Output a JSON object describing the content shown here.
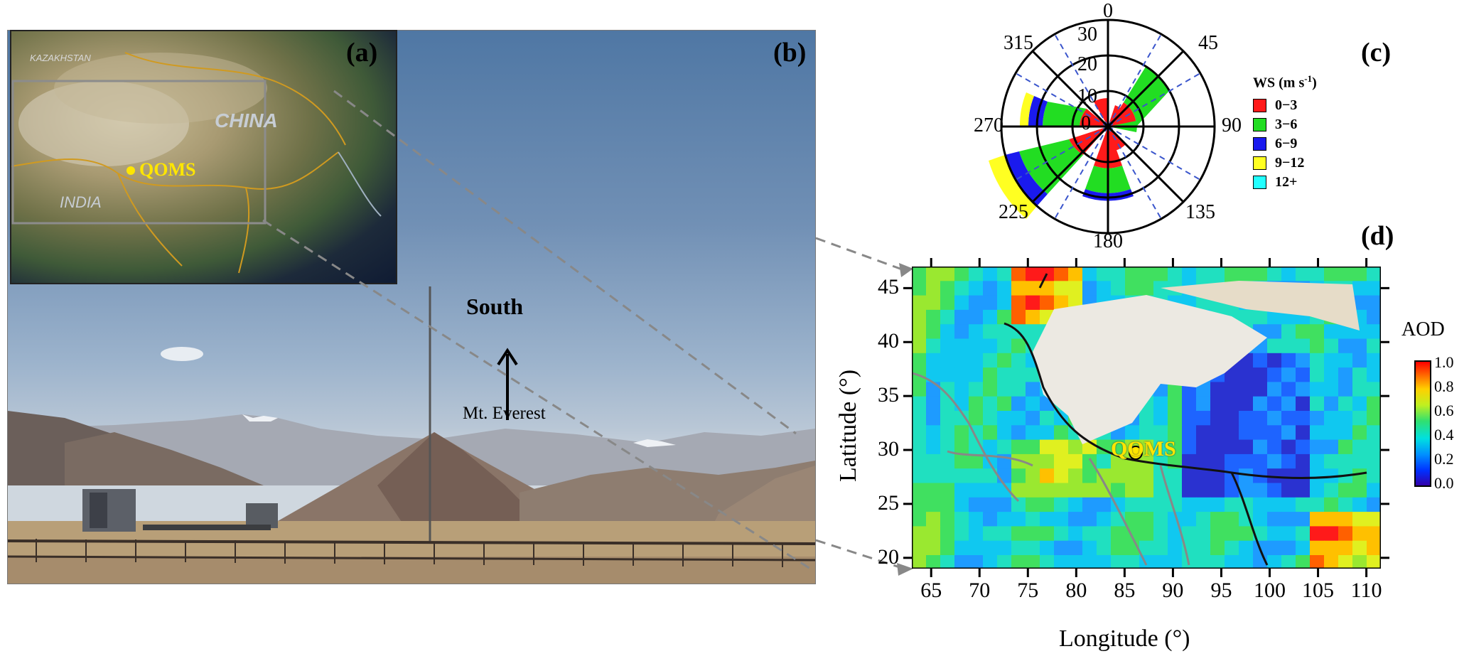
{
  "panel_labels": {
    "a": "(a)",
    "b": "(b)",
    "c": "(c)",
    "d": "(d)"
  },
  "inset_map": {
    "country_labels": [
      "KAZAKHSTAN",
      "CHINA",
      "INDIA"
    ],
    "site_label": "QOMS"
  },
  "photo": {
    "direction_label": "South",
    "peak_label": "Mt. Everest"
  },
  "wind_rose": {
    "legend_title_main": "WS (m s",
    "legend_title_sup": "-1",
    "legend_title_end": ")",
    "radial_ticks": [
      "0",
      "10",
      "20",
      "30"
    ],
    "direction_labels": {
      "n": "0",
      "ne": "45",
      "e": "90",
      "se": "135",
      "s": "180",
      "sw": "225",
      "w": "270",
      "nw": "315"
    },
    "bins": [
      {
        "label": "0−3",
        "color": "#ff1a1a"
      },
      {
        "label": "3−6",
        "color": "#22dd22"
      },
      {
        "label": "6−9",
        "color": "#1a1aee"
      },
      {
        "label": "9−12",
        "color": "#ffff22"
      },
      {
        "label": "12+",
        "color": "#22ffff"
      }
    ]
  },
  "aod_map": {
    "site_label": "QOMS",
    "xlabel": "Longitude (°)",
    "ylabel": "Latitude (°)",
    "x_ticks": [
      "65",
      "70",
      "75",
      "80",
      "85",
      "90",
      "95",
      "100",
      "105",
      "110"
    ],
    "y_ticks": [
      "20",
      "25",
      "30",
      "35",
      "40",
      "45"
    ],
    "colorbar_title": "AOD",
    "colorbar_ticks": [
      "0.0",
      "0.2",
      "0.4",
      "0.6",
      "0.8",
      "1.0"
    ]
  }
}
